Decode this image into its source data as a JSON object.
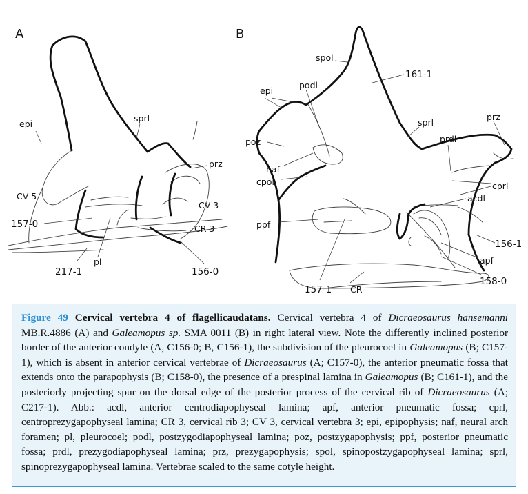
{
  "figure": {
    "panel_a": {
      "letter": "A",
      "labels": {
        "epi": "epi",
        "sprl": "sprl",
        "prz": "prz",
        "cv5": "CV 5",
        "cv3": "CV 3",
        "c157": "157-0",
        "cr3": "CR 3",
        "pl": "pl",
        "c217": "217-1",
        "c156": "156-0"
      }
    },
    "panel_b": {
      "letter": "B",
      "labels": {
        "spol": "spol",
        "c161": "161-1",
        "epi": "epi",
        "podl": "podl",
        "sprl": "sprl",
        "prz": "prz",
        "prdl": "prdl",
        "poz": "poz",
        "naf": "naf",
        "cpol": "cpol",
        "cprl": "cprl",
        "acdl": "acdl",
        "ppf": "ppf",
        "c156": "156-1",
        "apf": "apf",
        "c158": "158-0",
        "c157": "157-1",
        "cr": "CR"
      }
    }
  },
  "caption": {
    "figure_label": "Figure 49",
    "title": "Cervical vertebra 4 of flagellicaudatans.",
    "s1": "Cervical vertebra 4 of ",
    "taxon1": "Dicraeosaurus hansemanni",
    "s2": " MB.R.4886 (A) and ",
    "taxon2": "Galeamopus sp.",
    "s3": " SMA 0011 (B) in right lateral view. Note the differently inclined posterior border of the anterior condyle (A, C156-0; B, C156-1), the subdivision of the pleurocoel in ",
    "taxon3": "Galeamopus",
    "s4": " (B; C157-1), which is absent in anterior cervical vertebrae of ",
    "taxon4": "Dicraeosaurus",
    "s5": " (A; C157-0), the anterior pneumatic fossa that extends onto the parapophysis (B; C158-0), the presence of a prespinal lamina in ",
    "taxon5": "Galeamopus",
    "s6": " (B; C161-1), and the posteriorly projecting spur on the dorsal edge of the posterior process of the cervical rib of ",
    "taxon6": "Dicraeosaurus",
    "s7": " (A; C217-1). Abb.: acdl, anterior centrodiapophyseal lamina; apf, anterior pneumatic fossa; cprl, centroprezygapophyseal lamina; CR 3, cervical rib 3; CV 3, cervical vertebra 3; epi, epipophysis; naf, neural arch foramen; pl, pleurocoel; podl, postzygodiapophyseal lamina; poz, postzygapophysis; ppf, posterior pneumatic fossa; prdl, prezygodiapophyseal lamina; prz, prezygapophysis; spol, spinopostzygapophyseal lamina; sprl, spinoprezygapophyseal lamina. Vertebrae scaled to the same cotyle height."
  }
}
